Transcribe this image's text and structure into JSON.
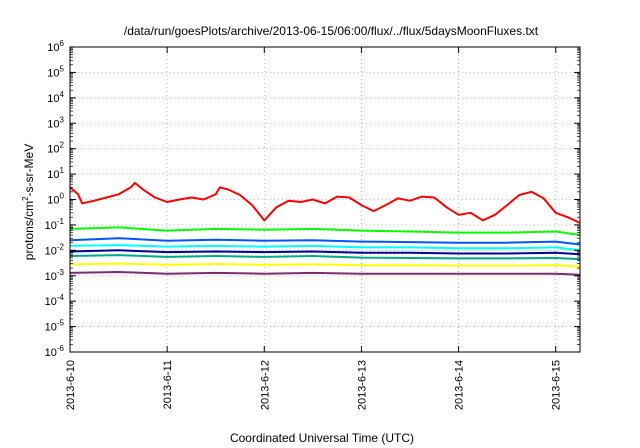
{
  "chart_data": {
    "type": "line",
    "title": "/data/run/goesPlots/archive/2013-06-15/06:00/flux/../flux/5daysMoonFluxes.txt",
    "xlabel": "Coordinated Universal Time (UTC)",
    "ylabel": {
      "prefix": "protons/cm",
      "sup": "2",
      "suffix": "-s-sr-MeV"
    },
    "yscale": "log",
    "ylim": [
      1e-06,
      1000000.0
    ],
    "xlim": [
      "2013-06-10 00:00",
      "2013-06-15 06:00"
    ],
    "grid": true,
    "x_ticks": [
      "2013-6-10",
      "2013-6-11",
      "2013-6-12",
      "2013-6-13",
      "2013-6-14",
      "2013-6-15"
    ],
    "y_ticks": [
      {
        "value": 1e-06,
        "base": "10",
        "exp": "-6"
      },
      {
        "value": 1e-05,
        "base": "10",
        "exp": "-5"
      },
      {
        "value": 0.0001,
        "base": "10",
        "exp": "-4"
      },
      {
        "value": 0.001,
        "base": "10",
        "exp": "-3"
      },
      {
        "value": 0.01,
        "base": "10",
        "exp": "-2"
      },
      {
        "value": 0.1,
        "base": "10",
        "exp": "-1"
      },
      {
        "value": 1,
        "base": "10",
        "exp": "0"
      },
      {
        "value": 10,
        "base": "10",
        "exp": "1"
      },
      {
        "value": 100,
        "base": "10",
        "exp": "2"
      },
      {
        "value": 1000,
        "base": "10",
        "exp": "3"
      },
      {
        "value": 10000,
        "base": "10",
        "exp": "4"
      },
      {
        "value": 100000,
        "base": "10",
        "exp": "5"
      },
      {
        "value": 1000000,
        "base": "10",
        "exp": "6"
      }
    ],
    "series": [
      {
        "color": "#ff0000",
        "x": [
          "2013-06-10 00:00",
          "2013-06-10 02:00",
          "2013-06-10 03:00",
          "2013-06-10 06:00",
          "2013-06-10 09:00",
          "2013-06-10 12:00",
          "2013-06-10 15:00",
          "2013-06-10 16:00",
          "2013-06-10 18:00",
          "2013-06-10 21:00",
          "2013-06-11 00:00",
          "2013-06-11 03:00",
          "2013-06-11 06:00",
          "2013-06-11 09:00",
          "2013-06-11 12:00",
          "2013-06-11 13:00",
          "2013-06-11 15:00",
          "2013-06-11 18:00",
          "2013-06-11 21:00",
          "2013-06-12 00:00",
          "2013-06-12 03:00",
          "2013-06-12 06:00",
          "2013-06-12 09:00",
          "2013-06-12 12:00",
          "2013-06-12 15:00",
          "2013-06-12 18:00",
          "2013-06-12 21:00",
          "2013-06-13 00:00",
          "2013-06-13 03:00",
          "2013-06-13 06:00",
          "2013-06-13 09:00",
          "2013-06-13 12:00",
          "2013-06-13 15:00",
          "2013-06-13 18:00",
          "2013-06-13 21:00",
          "2013-06-14 00:00",
          "2013-06-14 03:00",
          "2013-06-14 06:00",
          "2013-06-14 09:00",
          "2013-06-14 12:00",
          "2013-06-14 15:00",
          "2013-06-14 18:00",
          "2013-06-14 21:00",
          "2013-06-15 00:00",
          "2013-06-15 03:00",
          "2013-06-15 06:00"
        ],
        "y": [
          3,
          1.6,
          0.7,
          0.9,
          1.2,
          1.6,
          3,
          4.5,
          2.5,
          1.2,
          0.8,
          1.0,
          1.2,
          1.0,
          1.6,
          3,
          2.5,
          1.5,
          0.6,
          0.15,
          0.5,
          0.9,
          0.8,
          1.0,
          0.7,
          1.3,
          1.2,
          0.6,
          0.35,
          0.6,
          1.1,
          0.9,
          1.3,
          1.2,
          0.5,
          0.25,
          0.3,
          0.15,
          0.25,
          0.6,
          1.5,
          2.0,
          1.1,
          0.3,
          0.2,
          0.12
        ]
      },
      {
        "color": "#00ff00",
        "x": [
          "2013-06-10 00:00",
          "2013-06-10 12:00",
          "2013-06-11 00:00",
          "2013-06-11 12:00",
          "2013-06-12 00:00",
          "2013-06-12 12:00",
          "2013-06-13 00:00",
          "2013-06-13 12:00",
          "2013-06-14 00:00",
          "2013-06-14 12:00",
          "2013-06-15 00:00",
          "2013-06-15 06:00"
        ],
        "y": [
          0.07,
          0.08,
          0.06,
          0.07,
          0.065,
          0.07,
          0.06,
          0.055,
          0.05,
          0.05,
          0.055,
          0.04
        ]
      },
      {
        "color": "#00ffff",
        "x": [
          "2013-06-10 00:00",
          "2013-06-10 12:00",
          "2013-06-11 00:00",
          "2013-06-11 12:00",
          "2013-06-12 00:00",
          "2013-06-12 12:00",
          "2013-06-13 00:00",
          "2013-06-13 12:00",
          "2013-06-14 00:00",
          "2013-06-14 12:00",
          "2013-06-15 00:00",
          "2013-06-15 06:00"
        ],
        "y": [
          0.015,
          0.016,
          0.014,
          0.015,
          0.014,
          0.015,
          0.013,
          0.013,
          0.012,
          0.012,
          0.013,
          0.01
        ]
      },
      {
        "color": "#0055ff",
        "x": [
          "2013-06-10 00:00",
          "2013-06-10 12:00",
          "2013-06-11 00:00",
          "2013-06-11 12:00",
          "2013-06-12 00:00",
          "2013-06-12 12:00",
          "2013-06-13 00:00",
          "2013-06-13 12:00",
          "2013-06-14 00:00",
          "2013-06-14 12:00",
          "2013-06-15 00:00",
          "2013-06-15 06:00"
        ],
        "y": [
          0.025,
          0.03,
          0.024,
          0.026,
          0.024,
          0.025,
          0.022,
          0.021,
          0.02,
          0.02,
          0.022,
          0.017
        ]
      },
      {
        "color": "#000099",
        "x": [
          "2013-06-10 00:00",
          "2013-06-10 12:00",
          "2013-06-11 00:00",
          "2013-06-11 12:00",
          "2013-06-12 00:00",
          "2013-06-12 12:00",
          "2013-06-13 00:00",
          "2013-06-13 12:00",
          "2013-06-14 00:00",
          "2013-06-14 12:00",
          "2013-06-15 00:00",
          "2013-06-15 06:00"
        ],
        "y": [
          0.009,
          0.01,
          0.0085,
          0.009,
          0.0085,
          0.009,
          0.008,
          0.008,
          0.0075,
          0.0075,
          0.008,
          0.007
        ]
      },
      {
        "color": "#00aa88",
        "x": [
          "2013-06-10 00:00",
          "2013-06-10 12:00",
          "2013-06-11 00:00",
          "2013-06-11 12:00",
          "2013-06-12 00:00",
          "2013-06-12 12:00",
          "2013-06-13 00:00",
          "2013-06-13 12:00",
          "2013-06-14 00:00",
          "2013-06-14 12:00",
          "2013-06-15 00:00",
          "2013-06-15 06:00"
        ],
        "y": [
          0.006,
          0.0065,
          0.0055,
          0.006,
          0.0055,
          0.006,
          0.0052,
          0.005,
          0.0048,
          0.0048,
          0.005,
          0.0045
        ]
      },
      {
        "color": "#ffff00",
        "x": [
          "2013-06-10 00:00",
          "2013-06-10 12:00",
          "2013-06-11 00:00",
          "2013-06-11 12:00",
          "2013-06-12 00:00",
          "2013-06-12 12:00",
          "2013-06-13 00:00",
          "2013-06-13 12:00",
          "2013-06-14 00:00",
          "2013-06-14 12:00",
          "2013-06-15 00:00",
          "2013-06-15 06:00"
        ],
        "y": [
          0.0028,
          0.003,
          0.0027,
          0.0029,
          0.0027,
          0.0028,
          0.0026,
          0.0026,
          0.0025,
          0.0025,
          0.0026,
          0.0023
        ]
      },
      {
        "color": "#7b2d6f",
        "x": [
          "2013-06-10 00:00",
          "2013-06-10 12:00",
          "2013-06-11 00:00",
          "2013-06-11 12:00",
          "2013-06-12 00:00",
          "2013-06-12 12:00",
          "2013-06-13 00:00",
          "2013-06-13 12:00",
          "2013-06-14 00:00",
          "2013-06-14 12:00",
          "2013-06-15 00:00",
          "2013-06-15 06:00"
        ],
        "y": [
          0.0013,
          0.0014,
          0.0012,
          0.0013,
          0.0012,
          0.0013,
          0.0012,
          0.0012,
          0.0012,
          0.0012,
          0.0012,
          0.0011
        ]
      }
    ]
  }
}
